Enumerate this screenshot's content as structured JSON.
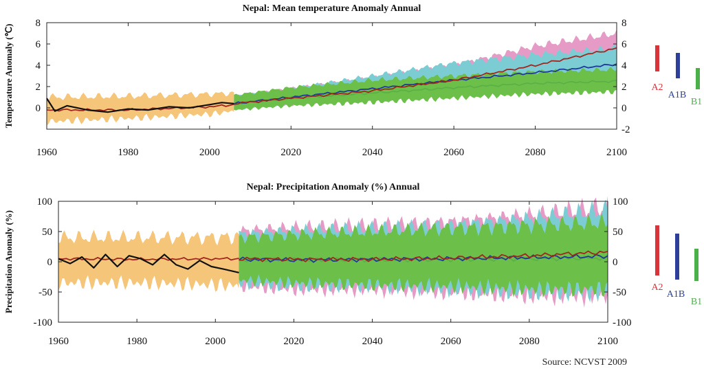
{
  "source": "Source: NCVST 2009",
  "colors": {
    "observed": "#111111",
    "model_mean": "#a0261e",
    "historical_band": "#f5c67a",
    "A2_band": "#e59bc6",
    "A1B_band": "#7ccdd3",
    "B1_band": "#6cc04a",
    "A2_line": "#a0261e",
    "A1B_line": "#1f3a99",
    "B1_line": "#5cb046",
    "A2_bar": "#d9343a",
    "A1B_bar": "#2d3f98",
    "B1_bar": "#4cb04a"
  },
  "chart_data": [
    {
      "type": "area",
      "title": "Nepal: Mean temperature Anomaly Annual",
      "xlabel": "",
      "ylabel": "Temperature Anomaly (℃)",
      "xlim": [
        1960,
        2100
      ],
      "ylim": [
        -2,
        8
      ],
      "x_ticks": [
        1960,
        1980,
        2000,
        2020,
        2040,
        2060,
        2080,
        2100
      ],
      "y_ticks": [
        -2,
        0,
        2,
        4,
        6,
        8
      ],
      "y_tick_labels_left": [
        "",
        "0",
        "2",
        "4",
        "6",
        "8"
      ],
      "y_tick_labels_right": [
        "-2",
        "0",
        "2",
        "4",
        "6",
        "8"
      ],
      "legend": {
        "placement": "right",
        "entries": [
          "A2",
          "A1B",
          "B1"
        ]
      },
      "series": [
        {
          "name": "A2",
          "key": "A2",
          "x": [
            2006,
            2020,
            2040,
            2060,
            2080,
            2100
          ],
          "mean": [
            0.4,
            0.9,
            1.6,
            2.6,
            4.0,
            5.6
          ],
          "low": [
            0.0,
            0.3,
            0.8,
            1.6,
            2.6,
            3.6
          ],
          "high": [
            1.1,
            1.8,
            2.8,
            4.0,
            5.8,
            7.0
          ]
        },
        {
          "name": "A1B",
          "key": "A1B",
          "x": [
            2006,
            2020,
            2040,
            2060,
            2080,
            2100
          ],
          "mean": [
            0.4,
            1.0,
            1.8,
            2.6,
            3.3,
            4.1
          ],
          "low": [
            -0.1,
            0.4,
            0.9,
            1.5,
            2.0,
            2.6
          ],
          "high": [
            1.1,
            1.8,
            3.0,
            4.2,
            5.0,
            5.6
          ]
        },
        {
          "name": "B1",
          "key": "B1",
          "x": [
            2006,
            2020,
            2040,
            2060,
            2080,
            2100
          ],
          "mean": [
            0.4,
            0.9,
            1.4,
            1.9,
            2.3,
            2.5
          ],
          "low": [
            -0.2,
            0.2,
            0.5,
            0.9,
            1.3,
            1.5
          ],
          "high": [
            1.2,
            1.9,
            2.6,
            3.0,
            3.4,
            3.6
          ]
        }
      ],
      "historical": {
        "x": [
          1960,
          1980,
          2000,
          2006
        ],
        "low": [
          -1.3,
          -1.0,
          -0.6,
          -0.3
        ],
        "high": [
          1.0,
          1.1,
          1.3,
          1.4
        ],
        "mean": [
          -0.2,
          -0.2,
          0.1,
          0.3
        ]
      },
      "observed": {
        "x": [
          1960,
          1962,
          1965,
          1970,
          1975,
          1980,
          1985,
          1990,
          1995,
          2000,
          2003,
          2006
        ],
        "y": [
          0.9,
          -0.3,
          0.2,
          -0.2,
          -0.4,
          -0.1,
          -0.2,
          0.1,
          0.0,
          0.3,
          0.5,
          0.4
        ]
      }
    },
    {
      "type": "area",
      "title": "Nepal: Precipitation Anomaly (%) Annual",
      "xlabel": "",
      "ylabel": "Precipitation Anomaly (%)",
      "xlim": [
        1960,
        2100
      ],
      "ylim": [
        -100,
        100
      ],
      "x_ticks": [
        1960,
        1980,
        2000,
        2020,
        2040,
        2060,
        2080,
        2100
      ],
      "y_ticks": [
        -100,
        -50,
        0,
        50,
        100
      ],
      "y_tick_labels_left": [
        "-100",
        "-50",
        "0",
        "50",
        "100"
      ],
      "y_tick_labels_right": [
        "-100",
        "-50",
        "0",
        "50",
        "100"
      ],
      "legend": {
        "placement": "right",
        "entries": [
          "A2",
          "A1B",
          "B1"
        ]
      },
      "series": [
        {
          "name": "A2",
          "key": "A2",
          "x": [
            2006,
            2020,
            2040,
            2060,
            2080,
            2100
          ],
          "mean": [
            5,
            4,
            4,
            6,
            10,
            16
          ],
          "low": [
            -40,
            -45,
            -45,
            -50,
            -55,
            -55
          ],
          "high": [
            50,
            55,
            60,
            65,
            75,
            90
          ]
        },
        {
          "name": "A1B",
          "key": "A1B",
          "x": [
            2006,
            2020,
            2040,
            2060,
            2080,
            2100
          ],
          "mean": [
            4,
            3,
            4,
            5,
            7,
            9
          ],
          "low": [
            -35,
            -40,
            -40,
            -45,
            -50,
            -50
          ],
          "high": [
            45,
            50,
            55,
            60,
            70,
            85
          ]
        },
        {
          "name": "B1",
          "key": "B1",
          "x": [
            2006,
            2020,
            2040,
            2060,
            2080,
            2100
          ],
          "mean": [
            3,
            3,
            3,
            4,
            5,
            6
          ],
          "low": [
            -30,
            -35,
            -38,
            -40,
            -45,
            -45
          ],
          "high": [
            40,
            45,
            50,
            55,
            60,
            65
          ]
        }
      ],
      "historical": {
        "x": [
          1960,
          1980,
          2000,
          2006
        ],
        "low": [
          -35,
          -35,
          -38,
          -40
        ],
        "high": [
          40,
          40,
          40,
          42
        ],
        "mean": [
          5,
          4,
          5,
          5
        ]
      },
      "observed": {
        "x": [
          1960,
          1963,
          1966,
          1969,
          1972,
          1975,
          1978,
          1981,
          1984,
          1987,
          1990,
          1993,
          1996,
          1999,
          2002,
          2006
        ],
        "y": [
          5,
          -3,
          8,
          -10,
          12,
          -8,
          10,
          5,
          -5,
          12,
          -5,
          -12,
          2,
          -8,
          -12,
          -18
        ]
      }
    }
  ]
}
